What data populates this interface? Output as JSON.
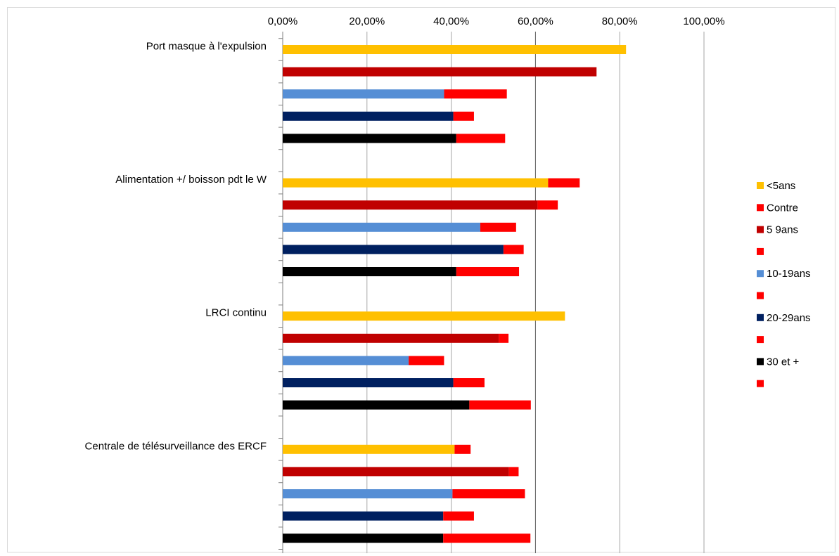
{
  "chart_data": {
    "type": "bar",
    "orientation": "horizontal",
    "stacked": true,
    "title": "",
    "xlabel": "",
    "ylabel": "",
    "xlim": [
      0,
      100
    ],
    "x_ticks": [
      "0,00%",
      "20,00%",
      "40,00%",
      "60,00%",
      "80,00%",
      "100,00%"
    ],
    "x_tick_values": [
      0,
      20,
      40,
      60,
      80,
      100
    ],
    "grid": true,
    "legend_position": "right",
    "categories": [
      "Port masque à l'expulsion",
      "Alimentation +/  boisson pdt le W",
      "LRCI  continu",
      "Centrale de télésurveillance des ERCF"
    ],
    "age_groups": [
      {
        "name": "<5ans",
        "color": "#ffc000"
      },
      {
        "name": "5  9ans",
        "color": "#c00000"
      },
      {
        "name": "10-19ans",
        "color": "#558ed5"
      },
      {
        "name": "20-29ans",
        "color": "#002060"
      },
      {
        "name": "30 et +",
        "color": "#000000"
      }
    ],
    "contre_color": "#ff0000",
    "legend": [
      {
        "label": "<5ans",
        "color": "#ffc000"
      },
      {
        "label": "Contre",
        "color": "#ff0000"
      },
      {
        "label": "5  9ans",
        "color": "#c00000"
      },
      {
        "label": "",
        "color": "#ff0000"
      },
      {
        "label": "10-19ans",
        "color": "#558ed5"
      },
      {
        "label": "",
        "color": "#ff0000"
      },
      {
        "label": "20-29ans",
        "color": "#002060"
      },
      {
        "label": "",
        "color": "#ff0000"
      },
      {
        "label": "30 et +",
        "color": "#000000"
      },
      {
        "label": "",
        "color": "#ff0000"
      }
    ],
    "values": [
      [
        [
          81.5,
          0
        ],
        [
          74.5,
          0
        ],
        [
          38.3,
          14.9
        ],
        [
          40.5,
          4.9
        ],
        [
          41.2,
          11.6
        ]
      ],
      [
        [
          63.0,
          7.5
        ],
        [
          60.5,
          4.8
        ],
        [
          46.9,
          8.5
        ],
        [
          52.4,
          4.8
        ],
        [
          41.2,
          14.9
        ]
      ],
      [
        [
          67.0,
          0
        ],
        [
          51.3,
          2.3
        ],
        [
          29.9,
          8.4
        ],
        [
          40.5,
          7.4
        ],
        [
          44.3,
          14.6
        ]
      ],
      [
        [
          40.8,
          3.8
        ],
        [
          53.7,
          2.3
        ],
        [
          40.3,
          17.2
        ],
        [
          38.1,
          7.3
        ],
        [
          38.1,
          20.7
        ]
      ]
    ]
  }
}
